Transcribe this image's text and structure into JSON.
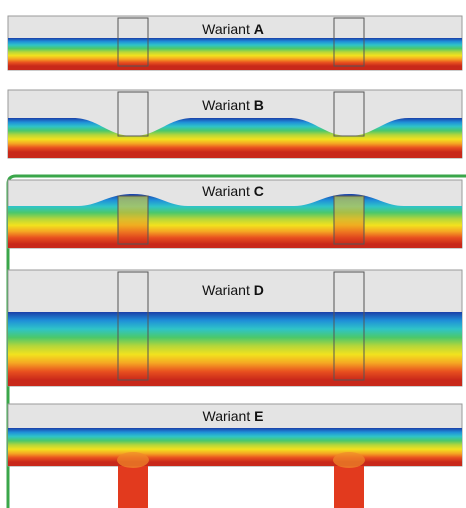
{
  "panels": [
    {
      "id": "A",
      "prefix": "Wariant",
      "letter": "A",
      "profile": "dip",
      "amp": 0,
      "stud": "embedded"
    },
    {
      "id": "B",
      "prefix": "Wariant",
      "letter": "B",
      "profile": "dip",
      "amp": 1,
      "stud": "embedded"
    },
    {
      "id": "C",
      "prefix": "Wariant",
      "letter": "C",
      "profile": "bump",
      "amp": 1,
      "stud": "embedded"
    },
    {
      "id": "D",
      "prefix": "Wariant",
      "letter": "D",
      "profile": "flat",
      "amp": 0,
      "stud": "embedded"
    },
    {
      "id": "E",
      "prefix": "Wariant",
      "letter": "E",
      "profile": "flat",
      "amp": 0,
      "stud": "below"
    }
  ],
  "colors": {
    "scale": [
      "#1a3fa8",
      "#1f8fd8",
      "#2fc4c8",
      "#4cc86a",
      "#b6d63a",
      "#f2e21e",
      "#f5a623",
      "#e8501f",
      "#c8281a"
    ],
    "air": "#e4e4e4",
    "frame_green": "#3aa64a",
    "stud_line": "#555555"
  }
}
